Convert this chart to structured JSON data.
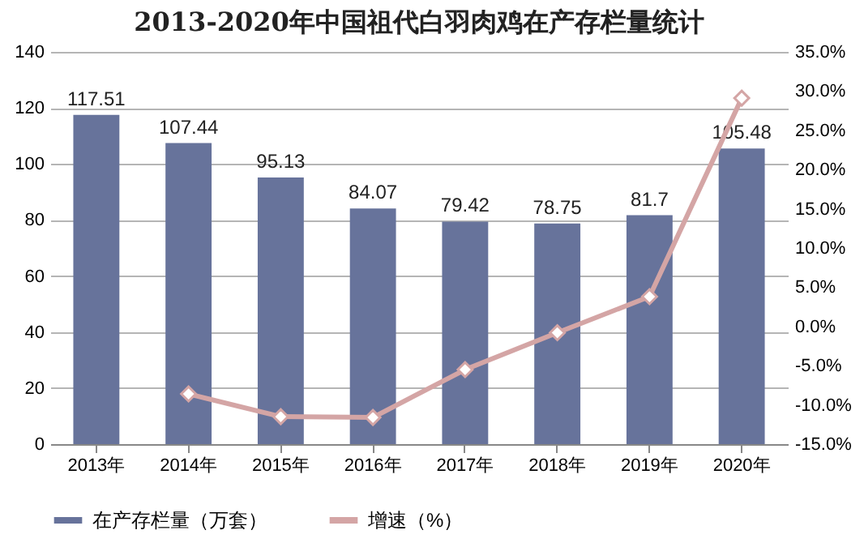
{
  "chart_data": {
    "type": "bar",
    "title": "2013-2020年中国祖代白羽肉鸡在产存栏量统计",
    "categories": [
      "2013年",
      "2014年",
      "2015年",
      "2016年",
      "2017年",
      "2018年",
      "2019年",
      "2020年"
    ],
    "series": [
      {
        "name": "在产存栏量（万套）",
        "color": "#67739b",
        "values": [
          117.51,
          107.44,
          95.13,
          84.07,
          79.42,
          78.75,
          81.7,
          105.48
        ],
        "value_labels": [
          "117.51",
          "107.44",
          "95.13",
          "84.07",
          "79.42",
          "78.75",
          "81.7",
          "105.48"
        ]
      },
      {
        "name": "增速（%）",
        "type": "line",
        "axis": "y2",
        "color": "#d4a5a5",
        "marker": "diamond",
        "values": [
          null,
          -8.6,
          -11.5,
          -11.6,
          -5.5,
          -0.8,
          3.8,
          29.1
        ]
      }
    ],
    "ylim": [
      0,
      140
    ],
    "yticks": [
      0,
      20,
      40,
      60,
      80,
      100,
      120,
      140
    ],
    "y2lim": [
      -15,
      35
    ],
    "y2ticks": [
      {
        "value": -15,
        "label": "-15.0%"
      },
      {
        "value": -10,
        "label": "-10.0%"
      },
      {
        "value": -5,
        "label": "-5.0%"
      },
      {
        "value": 0,
        "label": "0.0%"
      },
      {
        "value": 5,
        "label": "5.0%"
      },
      {
        "value": 10,
        "label": "10.0%"
      },
      {
        "value": 15,
        "label": "15.0%"
      },
      {
        "value": 20,
        "label": "20.0%"
      },
      {
        "value": 25,
        "label": "25.0%"
      },
      {
        "value": 30,
        "label": "30.0%"
      },
      {
        "value": 35,
        "label": "35.0%"
      }
    ],
    "grid": "y",
    "legend": "bottom"
  }
}
